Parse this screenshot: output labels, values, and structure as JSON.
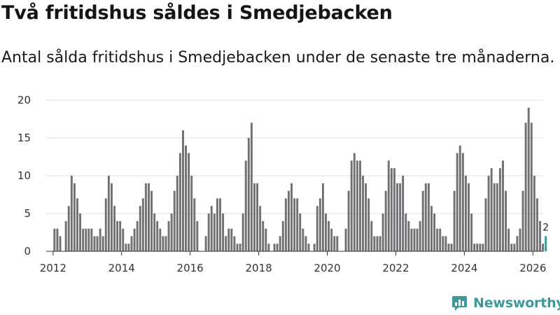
{
  "title": "Två fritidshus såldes i Smedjebacken",
  "subtitle": "Antal sålda fritidshus i Smedjebacken under de senaste tre månaderna.",
  "brand": {
    "name": "Newsworthy",
    "color": "#3d9a99",
    "icon": "bar-chart-logo-icon"
  },
  "chart_data": {
    "type": "bar",
    "title": "Två fritidshus såldes i Smedjebacken",
    "subtitle": "Antal sålda fritidshus i Smedjebacken under de senaste tre månaderna.",
    "xlabel": "",
    "ylabel": "",
    "x_start": "2011-12",
    "x_range": [
      2011.8,
      2026.3
    ],
    "xticks": [
      2012,
      2014,
      2016,
      2018,
      2020,
      2022,
      2024,
      2026
    ],
    "ylim": [
      0,
      20
    ],
    "yticks": [
      0,
      5,
      10,
      15,
      20
    ],
    "grid": true,
    "bar_color": "#717073",
    "highlight_color": "#3d9a99",
    "highlight_last": true,
    "values": [
      0,
      3,
      3,
      2,
      0,
      4,
      6,
      10,
      9,
      7,
      5,
      3,
      3,
      3,
      3,
      2,
      2,
      3,
      2,
      7,
      10,
      9,
      6,
      4,
      4,
      3,
      1,
      1,
      2,
      3,
      4,
      6,
      7,
      9,
      9,
      8,
      5,
      4,
      3,
      2,
      2,
      4,
      5,
      8,
      10,
      13,
      16,
      14,
      13,
      10,
      7,
      4,
      0,
      0,
      2,
      5,
      6,
      5,
      7,
      7,
      5,
      2,
      3,
      3,
      2,
      1,
      1,
      5,
      12,
      15,
      17,
      9,
      9,
      6,
      4,
      3,
      1,
      0,
      1,
      1,
      2,
      4,
      7,
      8,
      9,
      7,
      7,
      5,
      3,
      2,
      1,
      0,
      1,
      6,
      7,
      9,
      5,
      4,
      3,
      2,
      2,
      0,
      0,
      3,
      8,
      12,
      13,
      12,
      12,
      10,
      9,
      7,
      4,
      2,
      2,
      2,
      5,
      8,
      12,
      11,
      11,
      9,
      9,
      10,
      5,
      4,
      3,
      3,
      3,
      4,
      8,
      9,
      9,
      6,
      5,
      3,
      3,
      2,
      2,
      1,
      1,
      8,
      13,
      14,
      13,
      10,
      9,
      5,
      1,
      1,
      1,
      1,
      7,
      10,
      11,
      9,
      9,
      11,
      12,
      8,
      3,
      1,
      1,
      2,
      3,
      8,
      17,
      19,
      17,
      10,
      7,
      4,
      1,
      2
    ],
    "last_value_label": "2"
  }
}
